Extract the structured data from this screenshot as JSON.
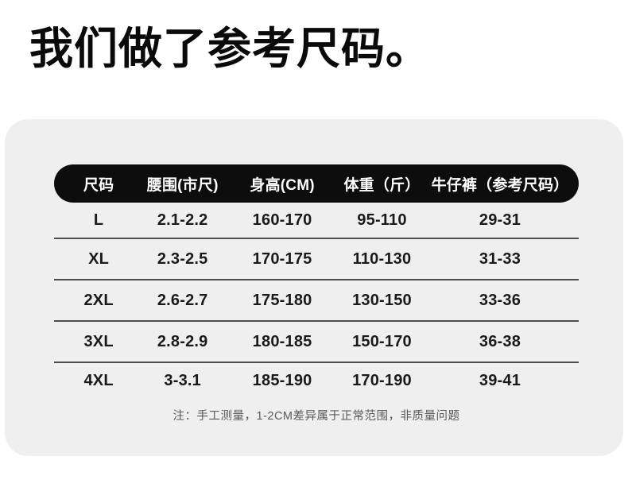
{
  "chart_data": {
    "type": "table",
    "title": "我们做了参考尺码。",
    "columns": [
      "尺码",
      "腰围(市尺)",
      "身高(CM)",
      "体重（斤）",
      "牛仔裤（参考尺码）"
    ],
    "rows": [
      {
        "size": "L",
        "waist": "2.1-2.2",
        "height": "160-170",
        "weight": "95-110",
        "jeans": "29-31"
      },
      {
        "size": "XL",
        "waist": "2.3-2.5",
        "height": "170-175",
        "weight": "110-130",
        "jeans": "31-33"
      },
      {
        "size": "2XL",
        "waist": "2.6-2.7",
        "height": "175-180",
        "weight": "130-150",
        "jeans": "33-36"
      },
      {
        "size": "3XL",
        "waist": "2.8-2.9",
        "height": "180-185",
        "weight": "150-170",
        "jeans": "36-38"
      },
      {
        "size": "4XL",
        "waist": "3-3.1",
        "height": "185-190",
        "weight": "170-190",
        "jeans": "39-41"
      }
    ],
    "note": "注：手工测量，1-2CM差异属于正常范围，非质量问题",
    "legend_position": "none",
    "grid": "horizontal-rules"
  },
  "colors": {
    "card_bg": "#efefef",
    "header_bg": "#0d0d0d",
    "header_text": "#ffffff",
    "body_text": "#1a1a1a",
    "divider": "#4d4d4d",
    "note_text": "#595959",
    "title_text": "#0a0a0a",
    "page_bg": "#ffffff"
  }
}
